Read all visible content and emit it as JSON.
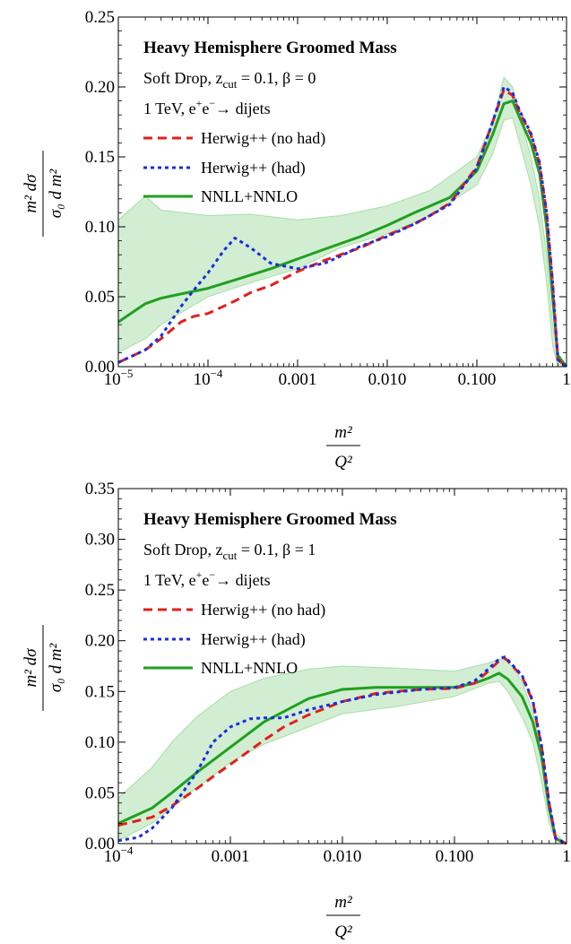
{
  "charts": [
    {
      "title": "Heavy Hemisphere Groomed Mass",
      "sub1_pre": "Soft Drop, z",
      "sub1_sub": "cut",
      "sub1_post": " = 0.1, β = 0",
      "sub2_pre": "1 TeV, e",
      "sub2_sup1": "+",
      "sub2_mid": "e",
      "sub2_sup2": "−",
      "sub2_post": "→ dijets",
      "ylabel_num": "m² dσ",
      "ylabel_den": "σ₀ d m²",
      "xlabel_num": "m²",
      "xlabel_den": "Q²"
    },
    {
      "title": "Heavy Hemisphere Groomed Mass",
      "sub1_pre": "Soft Drop, z",
      "sub1_sub": "cut",
      "sub1_post": " = 0.1, β = 1",
      "sub2_pre": "1 TeV, e",
      "sub2_sup1": "+",
      "sub2_mid": "e",
      "sub2_sup2": "−",
      "sub2_post": "→ dijets",
      "ylabel_num": "m² dσ",
      "ylabel_den": "σ₀ d m²",
      "xlabel_num": "m²",
      "xlabel_den": "Q²"
    }
  ],
  "chart_data": [
    {
      "type": "line",
      "x_scale": "log",
      "xlim": [
        1e-05,
        1
      ],
      "ylim": [
        0,
        0.25
      ],
      "xticks": [
        {
          "v": 1e-05,
          "base": "10",
          "exp": "−5"
        },
        {
          "v": 0.0001,
          "base": "10",
          "exp": "−4"
        },
        {
          "v": 0.001,
          "label": "0.001"
        },
        {
          "v": 0.01,
          "label": "0.010"
        },
        {
          "v": 0.1,
          "label": "0.100"
        },
        {
          "v": 1,
          "label": "1"
        }
      ],
      "yticks": [
        "0.00",
        "0.05",
        "0.10",
        "0.15",
        "0.20",
        "0.25"
      ],
      "yticks_v": [
        0,
        0.05,
        0.1,
        0.15,
        0.2,
        0.25
      ],
      "band": {
        "color": "#7ecf7e",
        "x": [
          1e-05,
          2e-05,
          3e-05,
          0.0001,
          0.0003,
          0.001,
          0.003,
          0.01,
          0.03,
          0.1,
          0.15,
          0.2,
          0.25,
          0.3,
          0.4,
          0.5,
          0.6,
          0.7,
          0.8,
          1
        ],
        "upper": [
          0.105,
          0.122,
          0.112,
          0.108,
          0.109,
          0.105,
          0.108,
          0.115,
          0.126,
          0.15,
          0.175,
          0.207,
          0.2,
          0.18,
          0.15,
          0.12,
          0.08,
          0.03,
          0.01,
          0.0
        ],
        "lower": [
          0.01,
          0.02,
          0.03,
          0.05,
          0.06,
          0.07,
          0.085,
          0.095,
          0.108,
          0.13,
          0.152,
          0.176,
          0.178,
          0.16,
          0.13,
          0.1,
          0.06,
          0.015,
          0.0,
          0.0
        ]
      },
      "series": [
        {
          "name": "Herwig++ (no had)",
          "color": "#e0201b",
          "dash": "10,6",
          "x": [
            1e-05,
            2e-05,
            3e-05,
            5e-05,
            7e-05,
            0.0001,
            0.0002,
            0.0003,
            0.0005,
            0.001,
            0.002,
            0.003,
            0.005,
            0.01,
            0.02,
            0.03,
            0.05,
            0.1,
            0.15,
            0.2,
            0.25,
            0.3,
            0.4,
            0.5,
            0.6,
            0.7,
            0.8,
            1
          ],
          "y": [
            0.003,
            0.012,
            0.02,
            0.032,
            0.036,
            0.038,
            0.047,
            0.053,
            0.058,
            0.068,
            0.076,
            0.08,
            0.085,
            0.094,
            0.102,
            0.108,
            0.117,
            0.143,
            0.175,
            0.198,
            0.194,
            0.182,
            0.166,
            0.145,
            0.11,
            0.06,
            0.005,
            0.0
          ]
        },
        {
          "name": "Herwig++ (had)",
          "color": "#1b2de0",
          "dash": "4,4",
          "x": [
            1e-05,
            2e-05,
            3e-05,
            5e-05,
            7e-05,
            0.0001,
            0.00015,
            0.0002,
            0.0003,
            0.0005,
            0.0007,
            0.001,
            0.002,
            0.003,
            0.005,
            0.01,
            0.02,
            0.03,
            0.05,
            0.1,
            0.15,
            0.2,
            0.25,
            0.3,
            0.4,
            0.5,
            0.6,
            0.7,
            0.8,
            1
          ],
          "y": [
            0.003,
            0.012,
            0.022,
            0.043,
            0.055,
            0.067,
            0.083,
            0.092,
            0.085,
            0.074,
            0.072,
            0.07,
            0.074,
            0.079,
            0.086,
            0.093,
            0.102,
            0.108,
            0.116,
            0.142,
            0.175,
            0.2,
            0.196,
            0.183,
            0.167,
            0.146,
            0.11,
            0.06,
            0.005,
            0.0
          ]
        },
        {
          "name": "NNLL+NNLO",
          "color": "#1fa01f",
          "dash": "",
          "x": [
            1e-05,
            2e-05,
            3e-05,
            5e-05,
            0.0001,
            0.0002,
            0.0005,
            0.001,
            0.002,
            0.005,
            0.01,
            0.02,
            0.05,
            0.1,
            0.15,
            0.2,
            0.25,
            0.3,
            0.4,
            0.5,
            0.6,
            0.7,
            0.8,
            1
          ],
          "y": [
            0.032,
            0.045,
            0.049,
            0.052,
            0.056,
            0.062,
            0.07,
            0.077,
            0.084,
            0.093,
            0.101,
            0.11,
            0.121,
            0.14,
            0.166,
            0.188,
            0.19,
            0.178,
            0.16,
            0.138,
            0.1,
            0.05,
            0.008,
            0.0
          ]
        }
      ]
    },
    {
      "type": "line",
      "x_scale": "log",
      "xlim": [
        0.0001,
        1
      ],
      "ylim": [
        0,
        0.35
      ],
      "xticks": [
        {
          "v": 0.0001,
          "base": "10",
          "exp": "−4"
        },
        {
          "v": 0.001,
          "label": "0.001"
        },
        {
          "v": 0.01,
          "label": "0.010"
        },
        {
          "v": 0.1,
          "label": "0.100"
        },
        {
          "v": 1,
          "label": "1"
        }
      ],
      "yticks": [
        "0.00",
        "0.05",
        "0.10",
        "0.15",
        "0.20",
        "0.25",
        "0.30",
        "0.35"
      ],
      "yticks_v": [
        0,
        0.05,
        0.1,
        0.15,
        0.2,
        0.25,
        0.3,
        0.35
      ],
      "band": {
        "color": "#7ecf7e",
        "x": [
          0.0001,
          0.0002,
          0.0003,
          0.0005,
          0.001,
          0.002,
          0.005,
          0.01,
          0.03,
          0.1,
          0.2,
          0.25,
          0.3,
          0.4,
          0.5,
          0.6,
          0.7,
          0.8,
          1
        ],
        "upper": [
          0.045,
          0.075,
          0.1,
          0.125,
          0.15,
          0.163,
          0.172,
          0.175,
          0.173,
          0.17,
          0.178,
          0.182,
          0.18,
          0.16,
          0.13,
          0.09,
          0.04,
          0.01,
          0.0
        ],
        "lower": [
          0.003,
          0.02,
          0.035,
          0.055,
          0.08,
          0.098,
          0.115,
          0.128,
          0.135,
          0.145,
          0.158,
          0.16,
          0.15,
          0.125,
          0.1,
          0.06,
          0.02,
          0.002,
          0.0
        ]
      },
      "series": [
        {
          "name": "Herwig++ (no had)",
          "color": "#e0201b",
          "dash": "10,6",
          "x": [
            0.0001,
            0.0002,
            0.0003,
            0.0005,
            0.0007,
            0.001,
            0.002,
            0.003,
            0.005,
            0.01,
            0.02,
            0.03,
            0.05,
            0.1,
            0.15,
            0.2,
            0.25,
            0.28,
            0.3,
            0.4,
            0.5,
            0.6,
            0.7,
            0.8,
            1
          ],
          "y": [
            0.018,
            0.026,
            0.037,
            0.054,
            0.066,
            0.078,
            0.102,
            0.115,
            0.127,
            0.14,
            0.148,
            0.15,
            0.152,
            0.153,
            0.158,
            0.17,
            0.18,
            0.183,
            0.18,
            0.165,
            0.14,
            0.095,
            0.04,
            0.005,
            0.0
          ]
        },
        {
          "name": "Herwig++ (had)",
          "color": "#1b2de0",
          "dash": "4,4",
          "x": [
            0.0001,
            0.00015,
            0.0002,
            0.0003,
            0.0005,
            0.0007,
            0.001,
            0.0015,
            0.002,
            0.003,
            0.005,
            0.01,
            0.02,
            0.05,
            0.1,
            0.15,
            0.2,
            0.25,
            0.28,
            0.3,
            0.4,
            0.5,
            0.6,
            0.7,
            0.8,
            1
          ],
          "y": [
            0.003,
            0.006,
            0.015,
            0.035,
            0.07,
            0.1,
            0.115,
            0.123,
            0.124,
            0.124,
            0.132,
            0.14,
            0.147,
            0.152,
            0.154,
            0.16,
            0.172,
            0.182,
            0.184,
            0.181,
            0.166,
            0.141,
            0.096,
            0.04,
            0.005,
            0.0
          ]
        },
        {
          "name": "NNLL+NNLO",
          "color": "#1fa01f",
          "dash": "",
          "x": [
            0.0001,
            0.0002,
            0.0003,
            0.0005,
            0.001,
            0.002,
            0.005,
            0.01,
            0.02,
            0.05,
            0.1,
            0.15,
            0.2,
            0.25,
            0.3,
            0.4,
            0.5,
            0.6,
            0.7,
            0.8,
            1
          ],
          "y": [
            0.02,
            0.035,
            0.05,
            0.07,
            0.095,
            0.12,
            0.143,
            0.152,
            0.154,
            0.154,
            0.154,
            0.158,
            0.163,
            0.168,
            0.162,
            0.145,
            0.12,
            0.085,
            0.035,
            0.005,
            0.0
          ]
        }
      ]
    }
  ]
}
